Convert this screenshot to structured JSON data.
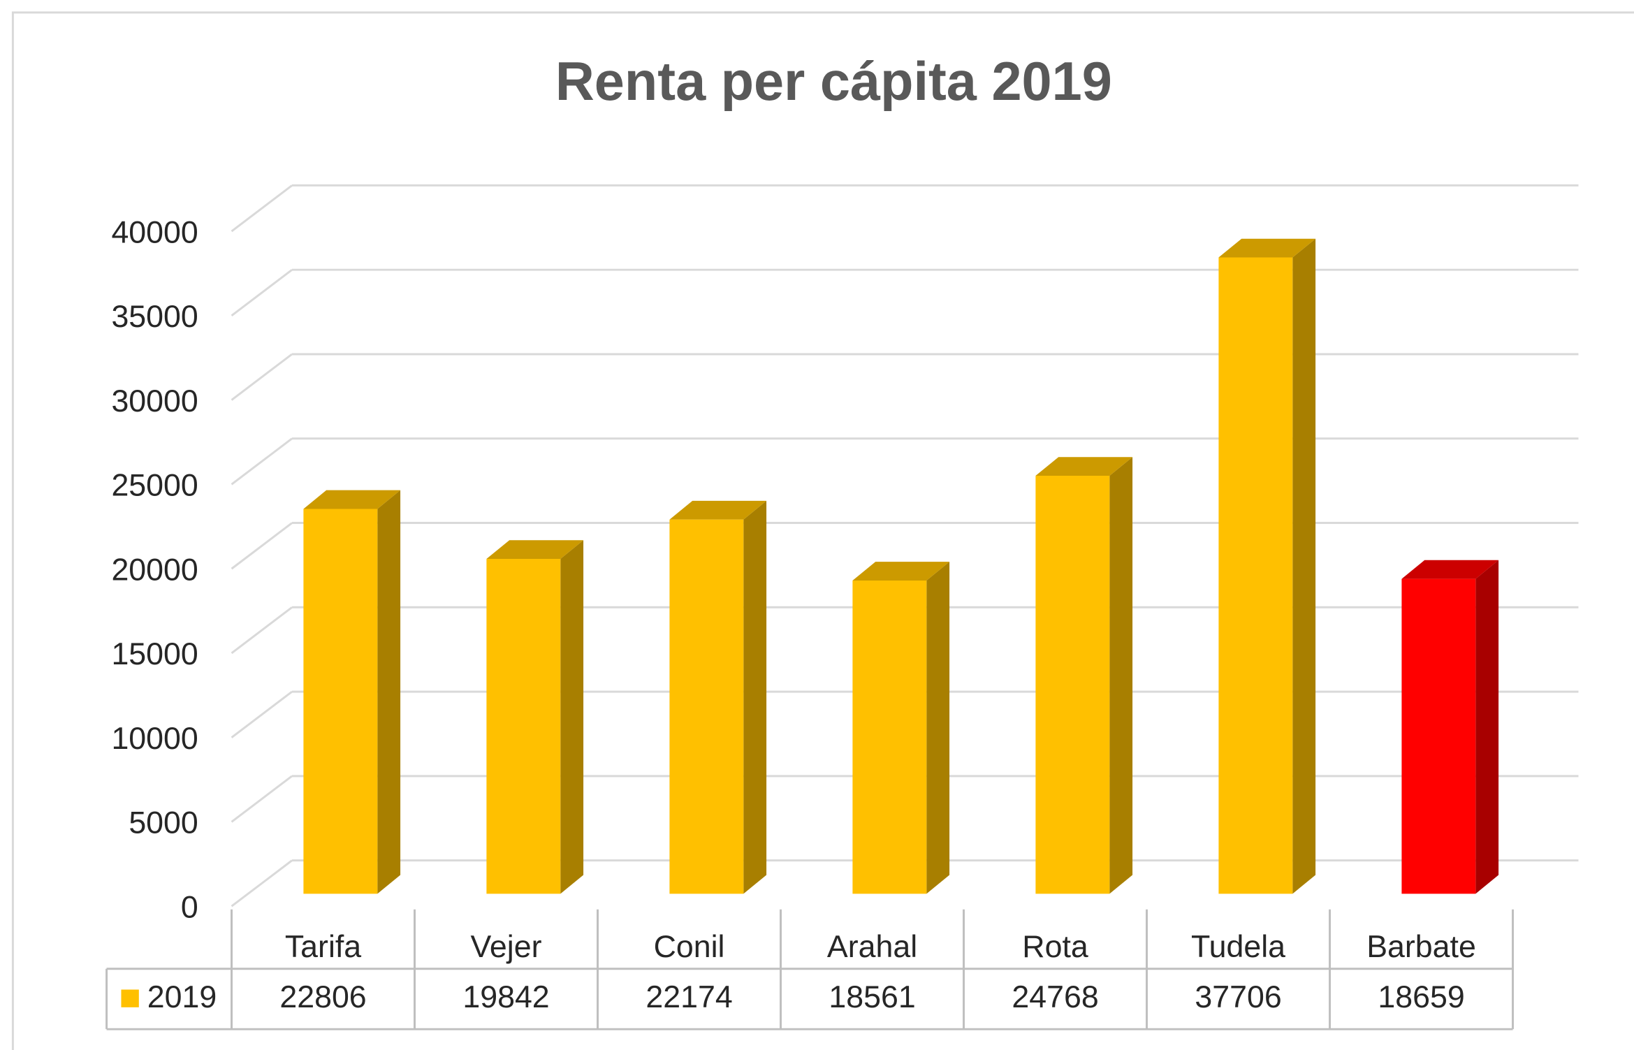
{
  "chart_data": {
    "type": "bar3d",
    "title": "Renta per cápita 2019",
    "categories": [
      "Tarifa",
      "Vejer",
      "Conil",
      "Arahal",
      "Rota",
      "Tudela",
      "Barbate"
    ],
    "series": [
      {
        "name": "2019",
        "color": "#ffc000",
        "colors": [
          "#ffc000",
          "#ffc000",
          "#ffc000",
          "#ffc000",
          "#ffc000",
          "#ffc000",
          "#ff0000"
        ],
        "values": [
          22806,
          19842,
          22174,
          18561,
          24768,
          37706,
          18659
        ]
      }
    ],
    "ylim": [
      0,
      40000
    ],
    "yticks": [
      0,
      5000,
      10000,
      15000,
      20000,
      25000,
      30000,
      35000,
      40000
    ],
    "grid": true,
    "data_table": true
  }
}
